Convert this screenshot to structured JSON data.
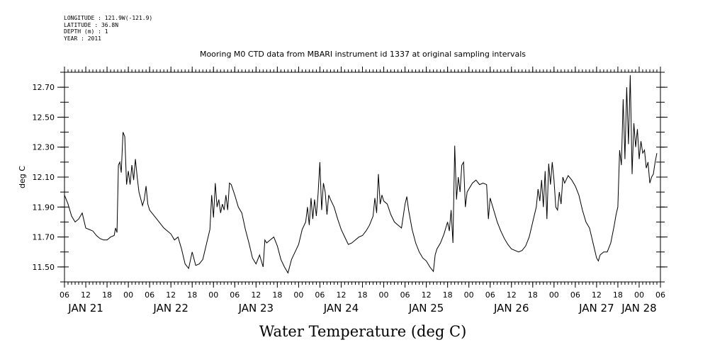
{
  "meta": {
    "longitude": "LONGITUDE : 121.9W(-121.9)",
    "latitude": "LATITUDE : 36.8N",
    "depth": "DEPTH (m) : 1",
    "year": "YEAR : 2011"
  },
  "chart_data": {
    "type": "line",
    "title": "Mooring M0 CTD data from MBARI instrument id 1337 at original sampling intervals",
    "xlabel": "Water Temperature (deg C)",
    "ylabel": "deg C",
    "ylim": [
      11.4,
      12.8
    ],
    "yticks": [
      11.5,
      11.7,
      11.9,
      12.1,
      12.3,
      12.5,
      12.7
    ],
    "ytick_labels": [
      "11.50",
      "11.70",
      "11.90",
      "12.10",
      "12.30",
      "12.50",
      "12.70"
    ],
    "x_unit": "hours since 2011-01-21 06:00",
    "xlim": [
      0,
      168
    ],
    "hour_ticks": [
      {
        "h": 0,
        "label": "06"
      },
      {
        "h": 6,
        "label": "12"
      },
      {
        "h": 12,
        "label": "18"
      },
      {
        "h": 18,
        "label": "00"
      },
      {
        "h": 24,
        "label": "06"
      },
      {
        "h": 30,
        "label": "12"
      },
      {
        "h": 36,
        "label": "18"
      },
      {
        "h": 42,
        "label": "00"
      },
      {
        "h": 48,
        "label": "06"
      },
      {
        "h": 54,
        "label": "12"
      },
      {
        "h": 60,
        "label": "18"
      },
      {
        "h": 66,
        "label": "00"
      },
      {
        "h": 72,
        "label": "06"
      },
      {
        "h": 78,
        "label": "12"
      },
      {
        "h": 84,
        "label": "18"
      },
      {
        "h": 90,
        "label": "00"
      },
      {
        "h": 96,
        "label": "06"
      },
      {
        "h": 102,
        "label": "12"
      },
      {
        "h": 108,
        "label": "18"
      },
      {
        "h": 114,
        "label": "00"
      },
      {
        "h": 120,
        "label": "06"
      },
      {
        "h": 126,
        "label": "12"
      },
      {
        "h": 132,
        "label": "18"
      },
      {
        "h": 138,
        "label": "00"
      },
      {
        "h": 144,
        "label": "06"
      },
      {
        "h": 150,
        "label": "12"
      },
      {
        "h": 156,
        "label": "18"
      },
      {
        "h": 162,
        "label": "00"
      },
      {
        "h": 168,
        "label": "06"
      }
    ],
    "date_labels": [
      {
        "h": 6,
        "label": "JAN 21"
      },
      {
        "h": 30,
        "label": "JAN 22"
      },
      {
        "h": 54,
        "label": "JAN 23"
      },
      {
        "h": 78,
        "label": "JAN 24"
      },
      {
        "h": 102,
        "label": "JAN 25"
      },
      {
        "h": 126,
        "label": "JAN 26"
      },
      {
        "h": 150,
        "label": "JAN 27"
      },
      {
        "h": 162,
        "label": "JAN 28"
      }
    ],
    "series": [
      {
        "values": [
          [
            0,
            11.98
          ],
          [
            1,
            11.92
          ],
          [
            2,
            11.84
          ],
          [
            3,
            11.8
          ],
          [
            4,
            11.82
          ],
          [
            5,
            11.86
          ],
          [
            6,
            11.76
          ],
          [
            7,
            11.75
          ],
          [
            8,
            11.74
          ],
          [
            9,
            11.71
          ],
          [
            10,
            11.69
          ],
          [
            11,
            11.68
          ],
          [
            12,
            11.68
          ],
          [
            13,
            11.7
          ],
          [
            14,
            11.71
          ],
          [
            14.4,
            11.76
          ],
          [
            14.8,
            11.73
          ],
          [
            15.2,
            12.18
          ],
          [
            15.6,
            12.2
          ],
          [
            16,
            12.13
          ],
          [
            16.5,
            12.4
          ],
          [
            17,
            12.37
          ],
          [
            17.5,
            12.05
          ],
          [
            18,
            12.14
          ],
          [
            18.5,
            12.05
          ],
          [
            19,
            12.18
          ],
          [
            19.5,
            12.08
          ],
          [
            20,
            12.22
          ],
          [
            20.5,
            12.1
          ],
          [
            21,
            12.0
          ],
          [
            22,
            11.91
          ],
          [
            22.5,
            11.95
          ],
          [
            23,
            12.04
          ],
          [
            23.5,
            11.92
          ],
          [
            24,
            11.88
          ],
          [
            26,
            11.82
          ],
          [
            28,
            11.76
          ],
          [
            30,
            11.72
          ],
          [
            31,
            11.68
          ],
          [
            32,
            11.7
          ],
          [
            33,
            11.62
          ],
          [
            34,
            11.52
          ],
          [
            35,
            11.49
          ],
          [
            36,
            11.6
          ],
          [
            37,
            11.51
          ],
          [
            38,
            11.52
          ],
          [
            39,
            11.55
          ],
          [
            40,
            11.65
          ],
          [
            41,
            11.75
          ],
          [
            41.5,
            11.98
          ],
          [
            42,
            11.83
          ],
          [
            42.5,
            12.06
          ],
          [
            43,
            11.9
          ],
          [
            43.5,
            11.95
          ],
          [
            44,
            11.86
          ],
          [
            44.5,
            11.92
          ],
          [
            45,
            11.88
          ],
          [
            45.5,
            11.98
          ],
          [
            46,
            11.88
          ],
          [
            46.5,
            12.06
          ],
          [
            47,
            12.05
          ],
          [
            48,
            11.98
          ],
          [
            49,
            11.9
          ],
          [
            50,
            11.86
          ],
          [
            51,
            11.75
          ],
          [
            52,
            11.66
          ],
          [
            53,
            11.56
          ],
          [
            54,
            11.52
          ],
          [
            55,
            11.58
          ],
          [
            56,
            11.5
          ],
          [
            56.5,
            11.68
          ],
          [
            57,
            11.66
          ],
          [
            58,
            11.68
          ],
          [
            59,
            11.7
          ],
          [
            60,
            11.64
          ],
          [
            61,
            11.55
          ],
          [
            62,
            11.5
          ],
          [
            63,
            11.46
          ],
          [
            64,
            11.55
          ],
          [
            65,
            11.6
          ],
          [
            66,
            11.65
          ],
          [
            67,
            11.75
          ],
          [
            68,
            11.8
          ],
          [
            68.5,
            11.9
          ],
          [
            69,
            11.78
          ],
          [
            69.5,
            11.96
          ],
          [
            70,
            11.82
          ],
          [
            70.5,
            11.95
          ],
          [
            71,
            11.84
          ],
          [
            71.5,
            11.99
          ],
          [
            72,
            12.2
          ],
          [
            72.5,
            11.88
          ],
          [
            73,
            12.06
          ],
          [
            73.5,
            12.0
          ],
          [
            74,
            11.85
          ],
          [
            74.5,
            11.98
          ],
          [
            75,
            11.95
          ],
          [
            76,
            11.9
          ],
          [
            77,
            11.82
          ],
          [
            78,
            11.75
          ],
          [
            79,
            11.7
          ],
          [
            80,
            11.65
          ],
          [
            81,
            11.66
          ],
          [
            82,
            11.68
          ],
          [
            83,
            11.7
          ],
          [
            84,
            11.71
          ],
          [
            85,
            11.74
          ],
          [
            86,
            11.78
          ],
          [
            87,
            11.84
          ],
          [
            87.5,
            11.96
          ],
          [
            88,
            11.86
          ],
          [
            88.5,
            12.12
          ],
          [
            89,
            11.92
          ],
          [
            89.5,
            11.98
          ],
          [
            90,
            11.94
          ],
          [
            91,
            11.92
          ],
          [
            92,
            11.85
          ],
          [
            93,
            11.8
          ],
          [
            94,
            11.78
          ],
          [
            95,
            11.76
          ],
          [
            96,
            11.92
          ],
          [
            96.5,
            11.97
          ],
          [
            97,
            11.88
          ],
          [
            98,
            11.75
          ],
          [
            99,
            11.66
          ],
          [
            100,
            11.6
          ],
          [
            101,
            11.56
          ],
          [
            102,
            11.54
          ],
          [
            103,
            11.5
          ],
          [
            104,
            11.47
          ],
          [
            104.5,
            11.58
          ],
          [
            105,
            11.62
          ],
          [
            106,
            11.66
          ],
          [
            107,
            11.72
          ],
          [
            108,
            11.8
          ],
          [
            108.5,
            11.74
          ],
          [
            109,
            11.88
          ],
          [
            109.5,
            11.66
          ],
          [
            110,
            12.31
          ],
          [
            110.5,
            11.95
          ],
          [
            111,
            12.1
          ],
          [
            111.5,
            12.0
          ],
          [
            112,
            12.18
          ],
          [
            112.5,
            12.2
          ],
          [
            113,
            11.9
          ],
          [
            113.5,
            12.0
          ],
          [
            114,
            12.02
          ],
          [
            115,
            12.06
          ],
          [
            116,
            12.08
          ],
          [
            117,
            12.05
          ],
          [
            118,
            12.06
          ],
          [
            119,
            12.05
          ],
          [
            119.5,
            11.82
          ],
          [
            120,
            11.96
          ],
          [
            121,
            11.88
          ],
          [
            122,
            11.8
          ],
          [
            123,
            11.74
          ],
          [
            124,
            11.69
          ],
          [
            125,
            11.65
          ],
          [
            126,
            11.62
          ],
          [
            127,
            11.61
          ],
          [
            128,
            11.6
          ],
          [
            129,
            11.61
          ],
          [
            130,
            11.64
          ],
          [
            131,
            11.7
          ],
          [
            132,
            11.8
          ],
          [
            133,
            11.9
          ],
          [
            133.5,
            12.02
          ],
          [
            134,
            11.94
          ],
          [
            134.5,
            12.08
          ],
          [
            135,
            11.9
          ],
          [
            135.5,
            12.14
          ],
          [
            136,
            11.82
          ],
          [
            136.5,
            12.19
          ],
          [
            137,
            12.05
          ],
          [
            137.5,
            12.2
          ],
          [
            138,
            12.08
          ],
          [
            138.5,
            11.9
          ],
          [
            139,
            11.88
          ],
          [
            139.5,
            12.0
          ],
          [
            140,
            11.92
          ],
          [
            140.5,
            12.1
          ],
          [
            141,
            12.06
          ],
          [
            142,
            12.11
          ],
          [
            143,
            12.08
          ],
          [
            144,
            12.04
          ],
          [
            145,
            11.98
          ],
          [
            146,
            11.88
          ],
          [
            147,
            11.8
          ],
          [
            148,
            11.76
          ],
          [
            149,
            11.66
          ],
          [
            150,
            11.56
          ],
          [
            150.5,
            11.54
          ],
          [
            151,
            11.58
          ],
          [
            152,
            11.6
          ],
          [
            153,
            11.6
          ],
          [
            154,
            11.66
          ],
          [
            155,
            11.78
          ],
          [
            155.5,
            11.85
          ],
          [
            156,
            11.9
          ],
          [
            156.5,
            12.28
          ],
          [
            157,
            12.18
          ],
          [
            157.5,
            12.62
          ],
          [
            158,
            12.22
          ],
          [
            158.5,
            12.7
          ],
          [
            159,
            12.32
          ],
          [
            159.5,
            12.78
          ],
          [
            160,
            12.12
          ],
          [
            160.5,
            12.46
          ],
          [
            161,
            12.3
          ],
          [
            161.5,
            12.42
          ],
          [
            162,
            12.22
          ],
          [
            162.5,
            12.34
          ],
          [
            163,
            12.26
          ],
          [
            163.5,
            12.28
          ],
          [
            164,
            12.16
          ],
          [
            164.5,
            12.2
          ],
          [
            165,
            12.06
          ],
          [
            165.5,
            12.1
          ],
          [
            166,
            12.12
          ],
          [
            166.5,
            12.2
          ],
          [
            167,
            12.26
          ]
        ]
      }
    ]
  }
}
